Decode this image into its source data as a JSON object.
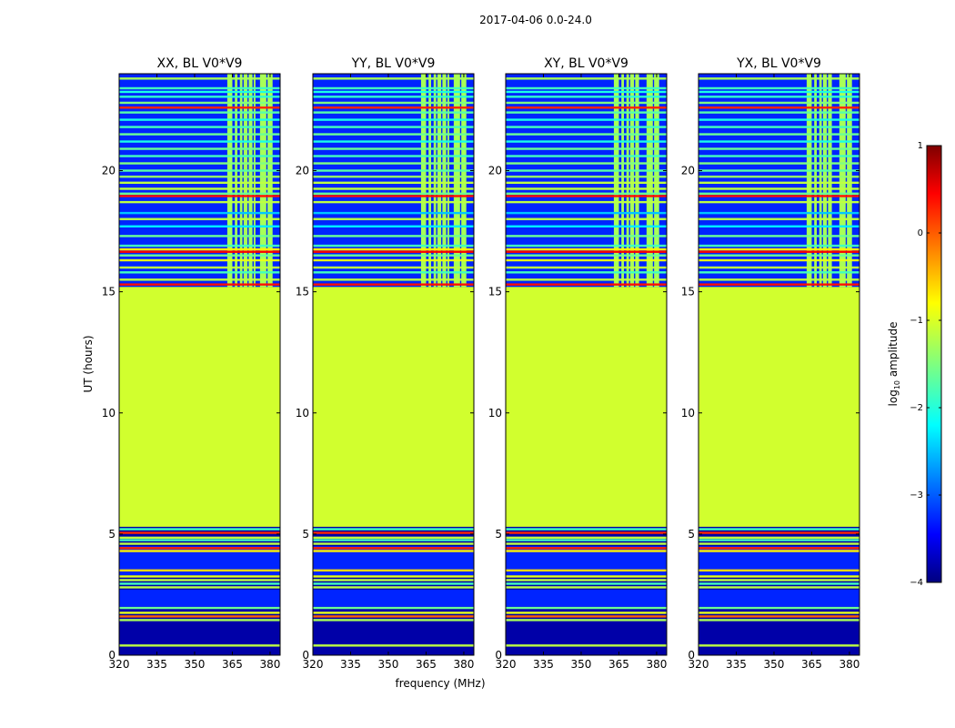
{
  "figure": {
    "suptitle": "2017-04-06 0.0-24.0",
    "xlabel": "frequency (MHz)",
    "ylabel": "UT (hours)"
  },
  "colorbar": {
    "label_main": "log",
    "label_sub": "10",
    "label_tail": " amplitude",
    "range": [
      -4,
      1
    ],
    "ticks": [
      1,
      0,
      -1,
      -2,
      -3,
      -4
    ],
    "tick_labels": [
      "1",
      "0",
      "−1",
      "−2",
      "−3",
      "−4"
    ],
    "colormap": "jet",
    "stops": [
      "#00007f",
      "#0000ff",
      "#00ffff",
      "#7fff7f",
      "#ffff00",
      "#ff0000",
      "#7f0000"
    ]
  },
  "chart_data": {
    "type": "heatmap",
    "panels": [
      {
        "title": "XX, BL V0*V9",
        "rfi_bands": [
          [
            363,
            365
          ],
          [
            366,
            367
          ],
          [
            368,
            369
          ],
          [
            369.5,
            371
          ],
          [
            371.5,
            373
          ],
          [
            373.5,
            374.2
          ],
          [
            376,
            378.5
          ],
          [
            379,
            381
          ]
        ]
      },
      {
        "title": "YY, BL V0*V9",
        "rfi_bands": [
          [
            363,
            365
          ],
          [
            366,
            367
          ],
          [
            368,
            369
          ],
          [
            369.5,
            371
          ],
          [
            371.5,
            373
          ],
          [
            373.5,
            374.2
          ],
          [
            376,
            378.5
          ],
          [
            379,
            381
          ]
        ]
      },
      {
        "title": "XY, BL V0*V9",
        "rfi_bands": [
          [
            363,
            365
          ],
          [
            366,
            367
          ],
          [
            368,
            369
          ],
          [
            369.5,
            371
          ],
          [
            371.5,
            373
          ],
          [
            376,
            378.5
          ],
          [
            379,
            381
          ]
        ]
      },
      {
        "title": "YX, BL V0*V9",
        "rfi_bands": [
          [
            363,
            365
          ],
          [
            366,
            367
          ],
          [
            368,
            369
          ],
          [
            369.5,
            371
          ],
          [
            371.5,
            373
          ],
          [
            376,
            378.5
          ],
          [
            379,
            381
          ]
        ]
      }
    ],
    "x_ticks": [
      320,
      335,
      350,
      365,
      380
    ],
    "x_tick_labels": [
      "320",
      "335",
      "350",
      "365",
      "380"
    ],
    "xlim": [
      320,
      384
    ],
    "y_ticks": [
      0,
      5,
      10,
      15,
      20
    ],
    "y_tick_labels": [
      "0",
      "5",
      "10",
      "15",
      "20"
    ],
    "ylim": [
      0,
      24
    ],
    "flagged_uniform_region": [
      5.3,
      15.2
    ],
    "flagged_value": -1.1,
    "background_value": -3.8,
    "active_block_value": -3.2,
    "active_blocks": [
      [
        15.2,
        24.0
      ],
      [
        2.0,
        2.7
      ],
      [
        3.3,
        4.5
      ]
    ],
    "horizontal_lines": [
      {
        "ut": 0.4,
        "value": -1.2
      },
      {
        "ut": 1.45,
        "value": -1.3
      },
      {
        "ut": 1.6,
        "value": -0.1
      },
      {
        "ut": 1.75,
        "value": -1.0
      },
      {
        "ut": 1.95,
        "value": -1.6
      },
      {
        "ut": 2.8,
        "value": -1.2
      },
      {
        "ut": 2.95,
        "value": -1.8
      },
      {
        "ut": 3.1,
        "value": -1.2
      },
      {
        "ut": 3.25,
        "value": -1.0
      },
      {
        "ut": 3.5,
        "value": -0.7
      },
      {
        "ut": 4.3,
        "value": -0.8
      },
      {
        "ut": 4.42,
        "value": 0.2
      },
      {
        "ut": 4.6,
        "value": -1.2
      },
      {
        "ut": 4.75,
        "value": -1.8
      },
      {
        "ut": 4.85,
        "value": -1.2
      },
      {
        "ut": 5.05,
        "value": 0.2
      },
      {
        "ut": 5.2,
        "value": -1.8
      },
      {
        "ut": 15.3,
        "value": 0.3
      },
      {
        "ut": 15.5,
        "value": -1.2
      },
      {
        "ut": 15.8,
        "value": -1.8
      },
      {
        "ut": 16.0,
        "value": -1.2
      },
      {
        "ut": 16.3,
        "value": -1.0
      },
      {
        "ut": 16.5,
        "value": -1.6
      },
      {
        "ut": 16.65,
        "value": 0.4
      },
      {
        "ut": 16.75,
        "value": -0.8
      },
      {
        "ut": 16.9,
        "value": -1.8
      },
      {
        "ut": 17.3,
        "value": -1.6
      },
      {
        "ut": 17.7,
        "value": -2.2
      },
      {
        "ut": 18.0,
        "value": -1.2
      },
      {
        "ut": 18.25,
        "value": -2.4
      },
      {
        "ut": 18.7,
        "value": -1.2
      },
      {
        "ut": 18.95,
        "value": 0.3
      },
      {
        "ut": 19.05,
        "value": -1.6
      },
      {
        "ut": 19.25,
        "value": -1.2
      },
      {
        "ut": 19.5,
        "value": -1.2
      },
      {
        "ut": 19.75,
        "value": -1.4
      },
      {
        "ut": 20.0,
        "value": -1.7
      },
      {
        "ut": 20.3,
        "value": -1.5
      },
      {
        "ut": 20.6,
        "value": -1.8
      },
      {
        "ut": 20.9,
        "value": -1.6
      },
      {
        "ut": 21.2,
        "value": -2.0
      },
      {
        "ut": 21.5,
        "value": -1.6
      },
      {
        "ut": 21.8,
        "value": -1.8
      },
      {
        "ut": 22.1,
        "value": -2.0
      },
      {
        "ut": 22.4,
        "value": -1.7
      },
      {
        "ut": 22.6,
        "value": 0.2
      },
      {
        "ut": 22.8,
        "value": -1.5
      },
      {
        "ut": 23.05,
        "value": -1.9
      },
      {
        "ut": 23.25,
        "value": -2.0
      },
      {
        "ut": 23.4,
        "value": -1.8
      },
      {
        "ut": 23.8,
        "value": -1.3
      }
    ],
    "rfi_value": -1.3
  }
}
